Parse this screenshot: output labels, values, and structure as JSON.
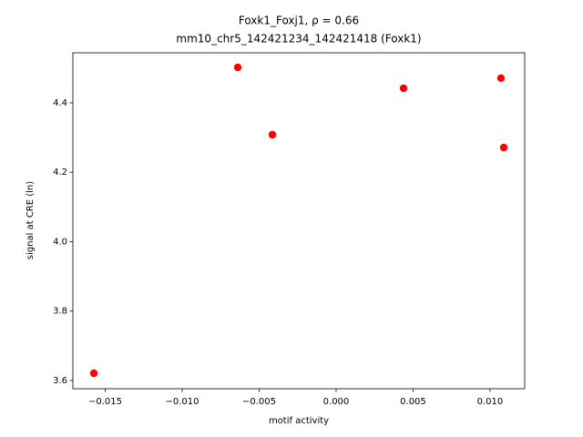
{
  "chart_data": {
    "type": "scatter",
    "title": "Foxk1_Foxj1, ρ = 0.66",
    "subtitle": "mm10_chr5_142421234_142421418 (Foxk1)",
    "x_label": "motif activity",
    "y_label": "signal at CRE (ln)",
    "color": "#ff0000",
    "x": [
      -0.01574,
      -0.00639,
      -0.00414,
      0.00438,
      0.01071,
      0.01089
    ],
    "values": [
      3.621,
      4.502,
      4.308,
      4.442,
      4.471,
      4.271
    ],
    "xlim": [
      -0.0171,
      0.01225
    ],
    "ylim": [
      3.5764,
      4.544
    ],
    "xticks": [
      {
        "value": -0.015,
        "label": "−0.015"
      },
      {
        "value": -0.01,
        "label": "−0.010"
      },
      {
        "value": -0.005,
        "label": "−0.005"
      },
      {
        "value": 0,
        "label": "0.000"
      },
      0.005,
      {
        "value": 0.01,
        "label": "0.010"
      }
    ],
    "yticks": [
      3.6,
      3.8,
      {
        "value": 4,
        "label": "4.0"
      },
      4.2,
      4.4
    ]
  }
}
